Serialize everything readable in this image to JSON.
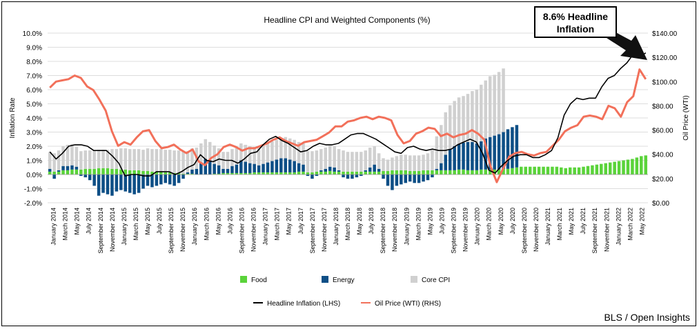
{
  "chart_data": {
    "type": "bar",
    "title": "Headline CPI and Weighted Components (%)",
    "ylabel": "Inflation Rate",
    "y2label": "Oil Price (WTI)",
    "ylim": [
      -0.02,
      0.1
    ],
    "y2lim": [
      0,
      140
    ],
    "y_ticks": [
      "-2.0%",
      "-1.0%",
      "0.0%",
      "1.0%",
      "2.0%",
      "3.0%",
      "4.0%",
      "5.0%",
      "6.0%",
      "7.0%",
      "8.0%",
      "9.0%",
      "10.0%"
    ],
    "y2_ticks": [
      "$0.00",
      "$20.00",
      "$40.00",
      "$60.00",
      "$80.00",
      "$100.00",
      "$120.00",
      "$140.00"
    ],
    "x_tick_labels": [
      "January 2014",
      "March 2014",
      "May 2014",
      "July 2014",
      "September 2014",
      "November 2014",
      "January 2015",
      "March 2015",
      "May 2015",
      "July 2015",
      "September 2015",
      "November 2015",
      "January 2016",
      "March 2016",
      "May 2016",
      "July 2016",
      "September 2016",
      "November 2016",
      "January 2017",
      "March 2017",
      "May 2017",
      "July 2017",
      "September 2017",
      "November 2017",
      "January 2018",
      "March 2018",
      "May 2018",
      "July 2018",
      "September 2018",
      "November 2018",
      "January 2019",
      "March 2019",
      "May 2019",
      "July 2019",
      "September 2019",
      "November 2019",
      "January 2020",
      "March 2020",
      "May 2020",
      "July 2020",
      "September 2020",
      "November 2020",
      "January 2021",
      "March 2021",
      "May 2021",
      "July 2021",
      "September 2021",
      "November 2021",
      "January 2022",
      "March 2022",
      "May 2022"
    ],
    "grid": true,
    "legend_position": "bottom",
    "legend": {
      "food": "Food",
      "energy": "Energy",
      "core": "Core CPI",
      "headline": "Headline Inflation (LHS)",
      "oil": "Oil Price (WTI) (RHS)"
    },
    "colors": {
      "food": "#5ad33a",
      "energy": "#0e4f86",
      "core": "#d0d0d0",
      "headline": "#000000",
      "oil": "#f2705a",
      "grid": "#dddddd"
    },
    "series": [
      {
        "name": "Food",
        "values": [
          0.2,
          0.2,
          0.2,
          0.3,
          0.3,
          0.35,
          0.35,
          0.35,
          0.4,
          0.4,
          0.4,
          0.45,
          0.45,
          0.45,
          0.4,
          0.4,
          0.35,
          0.35,
          0.3,
          0.3,
          0.3,
          0.25,
          0.25,
          0.2,
          0.2,
          0.2,
          0.15,
          0.15,
          0.1,
          0.1,
          0.05,
          0.05,
          0.05,
          0,
          0,
          0,
          0,
          0.05,
          0.05,
          0.1,
          0.1,
          0.1,
          0.1,
          0.1,
          0.1,
          0.1,
          0.15,
          0.15,
          0.15,
          0.15,
          0.15,
          0.15,
          0.15,
          0.15,
          0.15,
          0.15,
          0.2,
          0.2,
          0.15,
          0.15,
          0.2,
          0.2,
          0.2,
          0.25,
          0.2,
          0.2,
          0.2,
          0.2,
          0.2,
          0.2,
          0.2,
          0.2,
          0.2,
          0.2,
          0.2,
          0.25,
          0.25,
          0.3,
          0.3,
          0.3,
          0.3,
          0.25,
          0.25,
          0.25,
          0.3,
          0.3,
          0.3,
          0.3,
          0.3,
          0.3,
          0.3,
          0.3,
          0.35,
          0.35,
          0.3,
          0.3,
          0.3,
          0.35,
          0.35,
          0.35,
          0.35,
          0.35,
          0.4,
          0.4,
          0.45,
          0.5,
          0.55,
          0.55,
          0.55,
          0.55,
          0.55,
          0.55,
          0.55,
          0.55,
          0.55,
          0.5,
          0.45,
          0.5,
          0.5,
          0.5,
          0.55,
          0.6,
          0.65,
          0.7,
          0.75,
          0.8,
          0.85,
          0.9,
          0.95,
          1.0,
          1.05,
          1.1,
          1.2,
          1.3,
          1.35
        ]
      },
      {
        "name": "Energy",
        "values": [
          0.2,
          -0.3,
          0.1,
          0.3,
          0.3,
          0.3,
          0.2,
          -0.1,
          -0.2,
          -0.4,
          -0.8,
          -1.5,
          -1.3,
          -1.4,
          -1.5,
          -1.2,
          -1.1,
          -1.2,
          -1.3,
          -1.4,
          -1.3,
          -1.0,
          -0.8,
          -0.9,
          -0.8,
          -0.7,
          -0.6,
          -0.7,
          -0.8,
          -0.6,
          -0.3,
          0.1,
          0.3,
          0.4,
          0.8,
          1.1,
          1.0,
          0.7,
          0.6,
          0.3,
          0.3,
          0.5,
          0.6,
          0.9,
          0.8,
          0.7,
          0.6,
          0.5,
          0.6,
          0.7,
          0.8,
          0.9,
          1.0,
          1.0,
          0.9,
          0.8,
          0.6,
          0.5,
          -0.1,
          -0.3,
          -0.1,
          0.1,
          0.2,
          0.3,
          0.3,
          0.1,
          -0.2,
          -0.3,
          -0.3,
          -0.2,
          -0.1,
          0.1,
          0.3,
          0.5,
          0.2,
          -0.3,
          -0.8,
          -1.1,
          -0.8,
          -0.7,
          -0.6,
          -0.5,
          -0.6,
          -0.6,
          -0.5,
          -0.4,
          -0.2,
          0.1,
          0.5,
          1.1,
          1.5,
          1.7,
          1.8,
          1.9,
          2.0,
          2.0,
          1.9,
          2.0,
          2.2,
          2.3,
          2.4,
          2.5,
          2.6,
          2.8,
          2.9,
          3.0
        ]
      },
      {
        "name": "Core CPI",
        "values": [
          1.2,
          1.3,
          1.4,
          1.4,
          1.5,
          1.5,
          1.4,
          1.3,
          1.3,
          1.3,
          1.3,
          1.3,
          1.3,
          1.3,
          1.4,
          1.4,
          1.5,
          1.5,
          1.5,
          1.5,
          1.5,
          1.5,
          1.6,
          1.6,
          1.6,
          1.6,
          1.6,
          1.6,
          1.6,
          1.6,
          1.6,
          1.5,
          1.5,
          1.5,
          1.4,
          1.4,
          1.3,
          1.3,
          1.2,
          1.2,
          1.2,
          1.2,
          1.2,
          1.2,
          1.2,
          1.2,
          1.2,
          1.3,
          1.3,
          1.4,
          1.4,
          1.4,
          1.4,
          1.5,
          1.5,
          1.5,
          1.5,
          1.5,
          1.5,
          1.5,
          1.5,
          1.5,
          1.5,
          1.5,
          1.5,
          1.5,
          1.5,
          1.4,
          1.4,
          1.4,
          1.4,
          1.4,
          1.4,
          1.3,
          1.1,
          0.9,
          0.8,
          0.9,
          1.0,
          1.1,
          1.1,
          1.1,
          1.1,
          1.1,
          1.1,
          1.2,
          1.5,
          2.3,
          2.7,
          3.0,
          3.1,
          3.2,
          3.3,
          3.3,
          3.4,
          3.6,
          3.8,
          4.0,
          4.1,
          4.3,
          4.3,
          4.4,
          4.5
        ]
      },
      {
        "name": "Headline Inflation (LHS)",
        "values": [
          1.6,
          1.1,
          1.5,
          2.0,
          2.1,
          2.1,
          2.0,
          1.7,
          1.7,
          1.7,
          1.3,
          0.8,
          -0.1,
          0.0,
          0.0,
          -0.1,
          -0.1,
          0.2,
          0.2,
          0.2,
          0.0,
          0.2,
          0.5,
          0.7,
          1.4,
          1.0,
          0.9,
          1.1,
          1.0,
          1.0,
          0.8,
          1.1,
          1.5,
          1.6,
          2.1,
          2.5,
          2.7,
          2.4,
          2.2,
          1.9,
          1.6,
          1.7,
          2.0,
          2.2,
          2.1,
          2.1,
          2.2,
          2.5,
          2.8,
          2.9,
          2.9,
          2.7,
          2.5,
          2.2,
          1.9,
          1.6,
          1.5,
          1.9,
          2.0,
          1.8,
          1.7,
          1.8,
          1.7,
          1.7,
          1.8,
          2.1,
          2.3,
          2.5,
          2.3,
          1.5,
          0.3,
          0.1,
          0.6,
          1.0,
          1.3,
          1.4,
          1.4,
          1.2,
          1.2,
          1.4,
          1.7,
          2.6,
          4.2,
          5.0,
          5.4,
          5.3,
          5.4,
          5.4,
          6.2,
          6.8,
          7.0,
          7.5,
          7.9,
          8.5,
          8.3,
          8.6
        ]
      },
      {
        "name": "Oil Price (WTI) (RHS)",
        "values": [
          95,
          100,
          101,
          102,
          105,
          103,
          96,
          93,
          85,
          76,
          59,
          47,
          50,
          48,
          54,
          59,
          60,
          51,
          45,
          46,
          48,
          44,
          41,
          44,
          34,
          31,
          37,
          40,
          46,
          48,
          46,
          43,
          45,
          45,
          47,
          49,
          52,
          54,
          51,
          49,
          47,
          50,
          51,
          52,
          55,
          58,
          63,
          63,
          67,
          68,
          70,
          71,
          69,
          71,
          70,
          68,
          56,
          49,
          51,
          57,
          59,
          62,
          61,
          55,
          57,
          54,
          56,
          57,
          60,
          57,
          52,
          30,
          17,
          28,
          38,
          41,
          42,
          40,
          39,
          41,
          42,
          47,
          52,
          59,
          62,
          64,
          71,
          72,
          71,
          69,
          80,
          78,
          71,
          83,
          88,
          110,
          102
        ]
      }
    ]
  },
  "callout": {
    "line1": "8.6% Headline",
    "line2": "Inflation"
  },
  "source": "BLS / Open Insights"
}
